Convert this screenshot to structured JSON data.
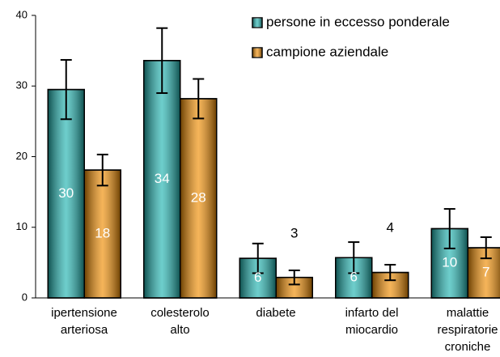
{
  "chart_data": {
    "type": "bar",
    "categories": [
      "ipertensione\narteriosa",
      "colesterolo\nalto",
      "diabete",
      "infarto del\nmiocardio",
      "malattie\nrespiratorie\ncroniche"
    ],
    "series": [
      {
        "name": "persone in eccesso ponderale",
        "color": "#1fb3b0",
        "values": [
          29.5,
          33.6,
          5.6,
          5.7,
          9.8
        ],
        "errors": [
          4.2,
          4.6,
          2.1,
          2.2,
          2.8
        ],
        "value_labels": [
          "30",
          "34",
          "6",
          "6",
          "10"
        ]
      },
      {
        "name": "campione aziendale",
        "color": "#f08c00",
        "values": [
          18.1,
          28.2,
          2.9,
          3.6,
          7.1
        ],
        "errors": [
          2.2,
          2.8,
          1.0,
          1.1,
          1.5
        ],
        "value_labels": [
          "18",
          "28",
          "3",
          "4",
          "7"
        ]
      }
    ],
    "ylim": [
      0,
      40
    ],
    "yticks": [
      0,
      10,
      20,
      30,
      40
    ],
    "grid": false,
    "legend": "top-right"
  }
}
